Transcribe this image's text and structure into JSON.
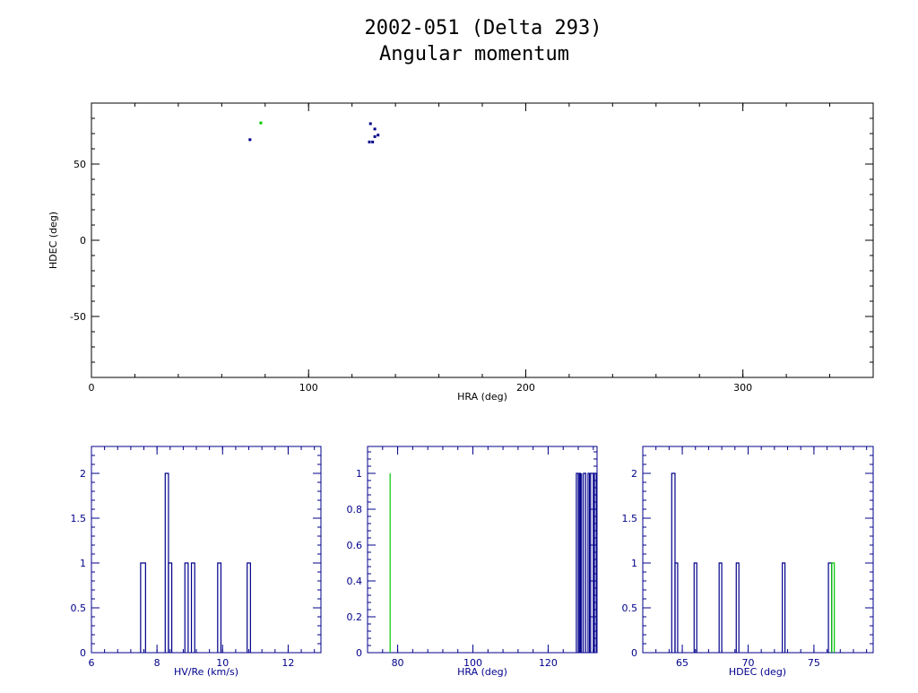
{
  "title_line1": "2002-051 (Delta 293)",
  "title_line2": "Angular momentum",
  "colors": {
    "frame_black": "#000000",
    "frame_blue": "#00008b",
    "series_blue": "#00008b",
    "series_green": "#00c800"
  },
  "chart_data": [
    {
      "type": "scatter",
      "xlabel": "HRA (deg)",
      "ylabel": "HDEC (deg)",
      "xlim": [
        0,
        360
      ],
      "ylim": [
        -90,
        90
      ],
      "xticks": [
        0,
        100,
        200,
        300
      ],
      "xtick_labels": [
        "0",
        "100",
        "200",
        "300"
      ],
      "yticks": [
        -50,
        0,
        50
      ],
      "ytick_labels": [
        "-50",
        "0",
        "50"
      ],
      "series": [
        {
          "color": "blue",
          "points": [
            [
              73,
              66
            ],
            [
              128,
              64.5
            ],
            [
              129.5,
              64.5
            ],
            [
              128.5,
              76.5
            ],
            [
              130.5,
              73
            ],
            [
              130.5,
              68
            ],
            [
              132,
              69
            ]
          ]
        },
        {
          "color": "green",
          "points": [
            [
              78,
              77
            ]
          ]
        }
      ]
    },
    {
      "type": "histogram",
      "xlabel": "HV/Re (km/s)",
      "ylabel": "",
      "xlim": [
        6,
        13
      ],
      "ylim": [
        0,
        2.3
      ],
      "xticks": [
        6,
        8,
        10,
        12
      ],
      "xtick_labels": [
        "6",
        "8",
        "10",
        "12"
      ],
      "yticks": [
        0,
        0.5,
        1,
        1.5,
        2
      ],
      "ytick_labels": [
        "0",
        "0.5",
        "1",
        "1.5",
        "2"
      ],
      "series": [
        {
          "color": "blue",
          "bars": [
            [
              7.5,
              7.65,
              1
            ],
            [
              8.25,
              8.35,
              2
            ],
            [
              8.35,
              8.45,
              1
            ],
            [
              8.85,
              8.95,
              1
            ],
            [
              9.05,
              9.15,
              1
            ],
            [
              9.85,
              9.95,
              1
            ],
            [
              10.75,
              10.85,
              1
            ]
          ]
        }
      ]
    },
    {
      "type": "histogram",
      "xlabel": "HRA (deg)",
      "ylabel": "",
      "xlim": [
        72,
        133
      ],
      "ylim": [
        0,
        1.15
      ],
      "xticks": [
        80,
        100,
        120
      ],
      "xtick_labels": [
        "80",
        "100",
        "120"
      ],
      "yticks": [
        0,
        0.2,
        0.4,
        0.6,
        0.8,
        1
      ],
      "ytick_labels": [
        "0",
        "0.2",
        "0.4",
        "0.6",
        "0.8",
        "1"
      ],
      "series": [
        {
          "color": "green",
          "bars": [
            [
              78,
              78,
              1
            ]
          ]
        },
        {
          "color": "blue",
          "bars": [
            [
              127.5,
              128,
              1
            ],
            [
              128.3,
              128.6,
              1
            ],
            [
              128.9,
              129.1,
              1
            ],
            [
              129.4,
              130,
              1
            ],
            [
              130.6,
              131,
              1
            ],
            [
              131.3,
              132,
              1
            ],
            [
              132.3,
              132.8,
              1
            ]
          ]
        }
      ]
    },
    {
      "type": "histogram",
      "xlabel": "HDEC (deg)",
      "ylabel": "",
      "xlim": [
        62,
        79.5
      ],
      "ylim": [
        0,
        2.3
      ],
      "xticks": [
        65,
        70,
        75
      ],
      "xtick_labels": [
        "65",
        "70",
        "75"
      ],
      "yticks": [
        0,
        0.5,
        1,
        1.5,
        2
      ],
      "ytick_labels": [
        "0",
        "0.5",
        "1",
        "1.5",
        "2"
      ],
      "series": [
        {
          "color": "blue",
          "bars": [
            [
              64.2,
              64.45,
              2
            ],
            [
              64.45,
              64.65,
              1
            ],
            [
              65.9,
              66.1,
              1
            ],
            [
              67.8,
              68,
              1
            ],
            [
              69.1,
              69.3,
              1
            ],
            [
              72.6,
              72.8,
              1
            ],
            [
              76.1,
              76.35,
              1
            ]
          ]
        },
        {
          "color": "green",
          "bars": [
            [
              76.35,
              76.55,
              1
            ]
          ]
        }
      ]
    }
  ]
}
